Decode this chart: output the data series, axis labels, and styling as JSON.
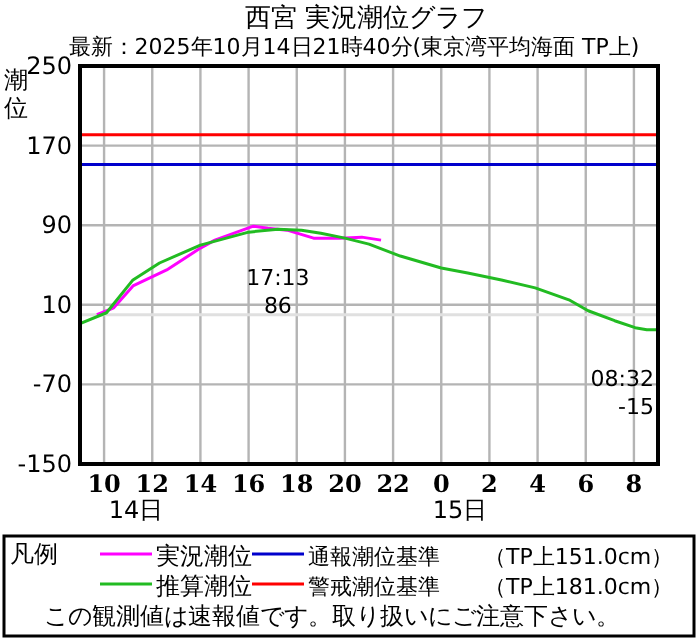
{
  "chart_data": {
    "type": "line",
    "title": "西宮 実況潮位グラフ",
    "subtitle": "最新：2025年10月14日21時40分(東京湾平均海面 TP上)",
    "ylabel": "潮位",
    "legend_title": "凡例",
    "xlim": [
      "2025-10-14T09:00",
      "2025-10-15T09:00"
    ],
    "ylim": [
      -150,
      250
    ],
    "xticks": [
      {
        "value": "2025-10-14T10:00",
        "label": "10"
      },
      {
        "value": "2025-10-14T12:00",
        "label": "12"
      },
      {
        "value": "2025-10-14T14:00",
        "label": "14"
      },
      {
        "value": "2025-10-14T16:00",
        "label": "16"
      },
      {
        "value": "2025-10-14T18:00",
        "label": "18"
      },
      {
        "value": "2025-10-14T20:00",
        "label": "20"
      },
      {
        "value": "2025-10-14T22:00",
        "label": "22"
      },
      {
        "value": "2025-10-15T00:00",
        "label": "0"
      },
      {
        "value": "2025-10-15T02:00",
        "label": "2"
      },
      {
        "value": "2025-10-15T04:00",
        "label": "4"
      },
      {
        "value": "2025-10-15T06:00",
        "label": "6"
      },
      {
        "value": "2025-10-15T08:00",
        "label": "8"
      }
    ],
    "yticks": [
      -150,
      -70,
      10,
      90,
      170,
      250
    ],
    "grid": true,
    "legend": "bottom",
    "series": [
      {
        "name": "実況潮位",
        "color": "#ff00ff",
        "x": [
          "2025-10-14T09:42",
          "2025-10-14T10:24",
          "2025-10-14T11:12",
          "2025-10-14T12:36",
          "2025-10-14T14:00",
          "2025-10-14T14:36",
          "2025-10-14T16:12",
          "2025-10-14T16:48",
          "2025-10-14T17:36",
          "2025-10-14T18:42",
          "2025-10-14T19:48",
          "2025-10-14T20:42",
          "2025-10-14T21:30"
        ],
        "values": [
          0,
          7,
          29,
          45,
          67,
          75,
          89,
          87,
          85,
          77,
          77,
          78,
          75
        ]
      },
      {
        "name": "推算潮位",
        "color": "#22bb22",
        "x": [
          "2025-10-14T09:00",
          "2025-10-14T10:06",
          "2025-10-14T11:12",
          "2025-10-14T12:18",
          "2025-10-14T14:00",
          "2025-10-14T16:00",
          "2025-10-14T17:13",
          "2025-10-14T18:12",
          "2025-10-14T19:00",
          "2025-10-14T20:00",
          "2025-10-14T21:00",
          "2025-10-14T22:18",
          "2025-10-15T00:00",
          "2025-10-15T01:06",
          "2025-10-15T02:30",
          "2025-10-15T03:54",
          "2025-10-15T05:18",
          "2025-10-15T06:06",
          "2025-10-15T07:12",
          "2025-10-15T08:03",
          "2025-10-15T08:32",
          "2025-10-15T09:00"
        ],
        "values": [
          -9,
          2,
          35,
          52,
          70,
          83,
          86,
          85,
          82,
          77,
          71,
          59,
          47,
          42,
          35,
          27,
          15,
          4,
          -6,
          -13,
          -15,
          -15
        ]
      }
    ],
    "ref_lines": [
      {
        "axis": "y",
        "value": 0,
        "color": "#e0e0e0"
      },
      {
        "axis": "y",
        "value": 151,
        "label": "通報潮位基準　　（TP上151.0cm）",
        "color": "#0000cc"
      },
      {
        "axis": "y",
        "value": 181,
        "label": "警戒潮位基準　　（TP上181.0cm）",
        "color": "#ff0000"
      }
    ],
    "annotations": [
      {
        "text": "17:13",
        "x": "2025-10-14T17:13",
        "y": 86
      },
      {
        "text": "86",
        "x": "2025-10-14T17:13",
        "y": 86
      },
      {
        "text": "08:32",
        "x": "2025-10-15T08:32",
        "y": -15
      },
      {
        "text": "-15",
        "x": "2025-10-15T08:32",
        "y": -15
      },
      "14日",
      "15日",
      "この観測値は速報値です。取り扱いにご注意下さい。"
    ]
  }
}
